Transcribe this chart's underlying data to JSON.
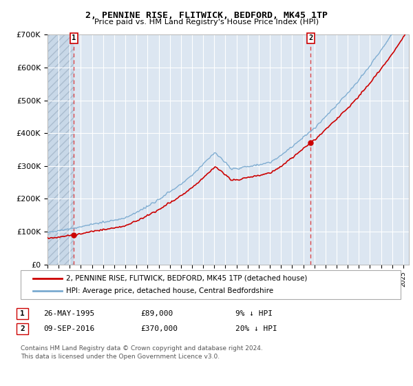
{
  "title": "2, PENNINE RISE, FLITWICK, BEDFORD, MK45 1TP",
  "subtitle": "Price paid vs. HM Land Registry's House Price Index (HPI)",
  "ylim": [
    0,
    700000
  ],
  "yticks": [
    0,
    100000,
    200000,
    300000,
    400000,
    500000,
    600000,
    700000
  ],
  "ytick_labels": [
    "£0",
    "£100K",
    "£200K",
    "£300K",
    "£400K",
    "£500K",
    "£600K",
    "£700K"
  ],
  "sale1_year": 1995.38,
  "sale1_price": 89000,
  "sale2_year": 2016.67,
  "sale2_price": 370000,
  "legend_line1": "2, PENNINE RISE, FLITWICK, BEDFORD, MK45 1TP (detached house)",
  "legend_line2": "HPI: Average price, detached house, Central Bedfordshire",
  "table_row1": [
    "1",
    "26-MAY-1995",
    "£89,000",
    "9% ↓ HPI"
  ],
  "table_row2": [
    "2",
    "09-SEP-2016",
    "£370,000",
    "20% ↓ HPI"
  ],
  "footnote": "Contains HM Land Registry data © Crown copyright and database right 2024.\nThis data is licensed under the Open Government Licence v3.0.",
  "plot_bg": "#dce6f1",
  "hatch_bg": "#c8d8e8",
  "grid_color": "#ffffff",
  "red_line_color": "#cc0000",
  "blue_line_color": "#7aaad0",
  "sale_marker_color": "#cc0000",
  "xstart": 1993,
  "xend": 2025.5
}
